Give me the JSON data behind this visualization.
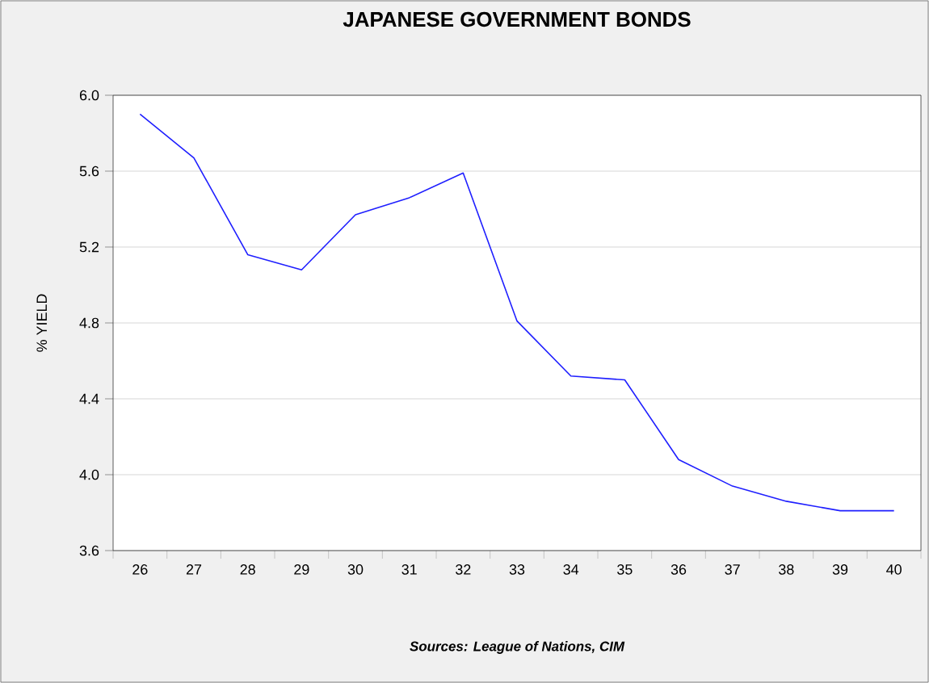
{
  "chart_data": {
    "type": "line",
    "title": "JAPANESE GOVERNMENT BONDS",
    "ylabel": "% YIELD",
    "categories": [
      "26",
      "27",
      "28",
      "29",
      "30",
      "31",
      "32",
      "33",
      "34",
      "35",
      "36",
      "37",
      "38",
      "39",
      "40"
    ],
    "series": [
      {
        "color": "#1f1fff",
        "values": [
          5.9,
          5.67,
          5.16,
          5.08,
          5.37,
          5.46,
          5.59,
          4.81,
          4.52,
          4.5,
          4.08,
          3.94,
          3.86,
          3.81,
          3.81
        ]
      }
    ],
    "ylim": [
      3.6,
      6.0
    ],
    "yticks": [
      {
        "value": 3.6,
        "label": "3.6"
      },
      {
        "value": 4.0,
        "label": "4.0"
      },
      {
        "value": 4.4,
        "label": "4.4"
      },
      {
        "value": 4.8,
        "label": "4.8"
      },
      {
        "value": 5.2,
        "label": "5.2"
      },
      {
        "value": 5.6,
        "label": "5.6"
      },
      {
        "value": 6.0,
        "label": "6.0"
      }
    ],
    "grid": "y",
    "marker": "none",
    "line_style": "solid",
    "annotations": [
      "Sources:  League of Nations, CIM"
    ]
  }
}
